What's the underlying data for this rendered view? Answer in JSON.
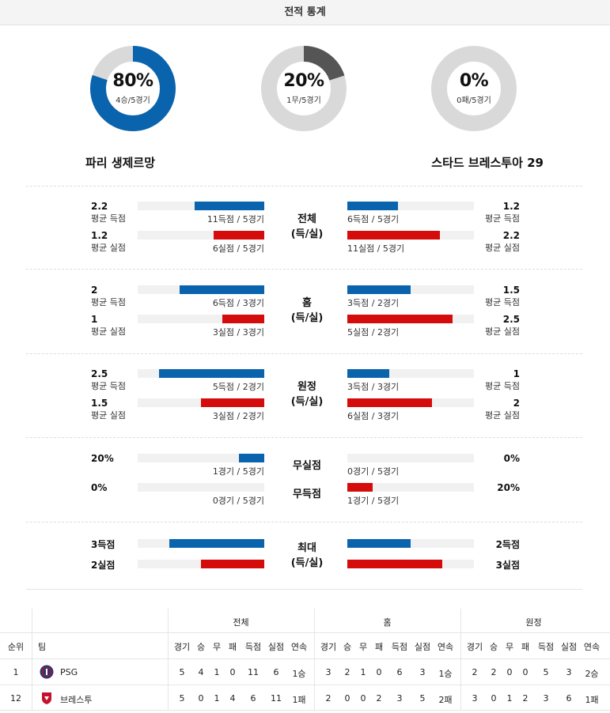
{
  "header": {
    "title": "전적 통계"
  },
  "donuts": [
    {
      "pct": "80%",
      "sub": "4승/5경기",
      "fraction": 0.8,
      "color": "#0a63ad"
    },
    {
      "pct": "20%",
      "sub": "1무/5경기",
      "fraction": 0.2,
      "color": "#555555"
    },
    {
      "pct": "0%",
      "sub": "0패/5경기",
      "fraction": 0.0,
      "color": "#0a63ad"
    }
  ],
  "teams": {
    "home": "파리 생제르망",
    "away": "스타드 브레스투아 29"
  },
  "sections": [
    {
      "center": [
        "전체",
        "(득/실)"
      ],
      "left": [
        {
          "value": "2.2",
          "label": "평균 득점",
          "bar_text": "11득점 / 5경기",
          "fraction": 0.55,
          "color": "blue"
        },
        {
          "value": "1.2",
          "label": "평균 실점",
          "bar_text": "6실점 / 5경기",
          "fraction": 0.4,
          "color": "red"
        }
      ],
      "right": [
        {
          "value": "1.2",
          "label": "평균 득점",
          "bar_text": "6득점 / 5경기",
          "fraction": 0.4,
          "color": "blue"
        },
        {
          "value": "2.2",
          "label": "평균 실점",
          "bar_text": "11실점 / 5경기",
          "fraction": 0.73,
          "color": "red"
        }
      ]
    },
    {
      "center": [
        "홈",
        "(득/실)"
      ],
      "left": [
        {
          "value": "2",
          "label": "평균 득점",
          "bar_text": "6득점 / 3경기",
          "fraction": 0.67,
          "color": "blue"
        },
        {
          "value": "1",
          "label": "평균 실점",
          "bar_text": "3실점 / 3경기",
          "fraction": 0.33,
          "color": "red"
        }
      ],
      "right": [
        {
          "value": "1.5",
          "label": "평균 득점",
          "bar_text": "3득점 / 2경기",
          "fraction": 0.5,
          "color": "blue"
        },
        {
          "value": "2.5",
          "label": "평균 실점",
          "bar_text": "5실점 / 2경기",
          "fraction": 0.83,
          "color": "red"
        }
      ]
    },
    {
      "center": [
        "원정",
        "(득/실)"
      ],
      "left": [
        {
          "value": "2.5",
          "label": "평균 득점",
          "bar_text": "5득점 / 2경기",
          "fraction": 0.83,
          "color": "blue"
        },
        {
          "value": "1.5",
          "label": "평균 실점",
          "bar_text": "3실점 / 2경기",
          "fraction": 0.5,
          "color": "red"
        }
      ],
      "right": [
        {
          "value": "1",
          "label": "평균 득점",
          "bar_text": "3득점 / 3경기",
          "fraction": 0.33,
          "color": "blue"
        },
        {
          "value": "2",
          "label": "평균 실점",
          "bar_text": "6실점 / 3경기",
          "fraction": 0.67,
          "color": "red"
        }
      ]
    }
  ],
  "clean": {
    "row1": {
      "center": "무실점",
      "left_value": "20%",
      "left_text": "1경기 / 5경기",
      "left_fraction": 0.2,
      "right_value": "0%",
      "right_text": "0경기 / 5경기",
      "right_fraction": 0.0
    },
    "row2": {
      "center": "무득점",
      "left_value": "0%",
      "left_text": "0경기 / 5경기",
      "left_fraction": 0.0,
      "right_value": "20%",
      "right_text": "1경기 / 5경기",
      "right_fraction": 0.2
    }
  },
  "max": {
    "center": [
      "최대",
      "(득/실)"
    ],
    "left": [
      {
        "value": "3득점",
        "fraction": 0.75,
        "color": "blue"
      },
      {
        "value": "2실점",
        "fraction": 0.5,
        "color": "red"
      }
    ],
    "right": [
      {
        "value": "2득점",
        "fraction": 0.5,
        "color": "blue"
      },
      {
        "value": "3실점",
        "fraction": 0.75,
        "color": "red"
      }
    ]
  },
  "table": {
    "groups": [
      "전체",
      "홈",
      "원정"
    ],
    "col_rank": "순위",
    "col_team": "팀",
    "subcols": [
      "경기",
      "승",
      "무",
      "패",
      "득점",
      "실점",
      "연속"
    ],
    "rows": [
      {
        "rank": "1",
        "team": "PSG",
        "logo": "psg-logo",
        "all": [
          "5",
          "4",
          "1",
          "0",
          "11",
          "6",
          "1승"
        ],
        "home": [
          "3",
          "2",
          "1",
          "0",
          "6",
          "3",
          "1승"
        ],
        "away": [
          "2",
          "2",
          "0",
          "0",
          "5",
          "3",
          "2승"
        ]
      },
      {
        "rank": "12",
        "team": "브레스투",
        "logo": "brest-logo",
        "all": [
          "5",
          "0",
          "1",
          "4",
          "6",
          "11",
          "1패"
        ],
        "home": [
          "2",
          "0",
          "0",
          "2",
          "3",
          "5",
          "2패"
        ],
        "away": [
          "3",
          "0",
          "1",
          "2",
          "3",
          "6",
          "1패"
        ]
      }
    ]
  }
}
